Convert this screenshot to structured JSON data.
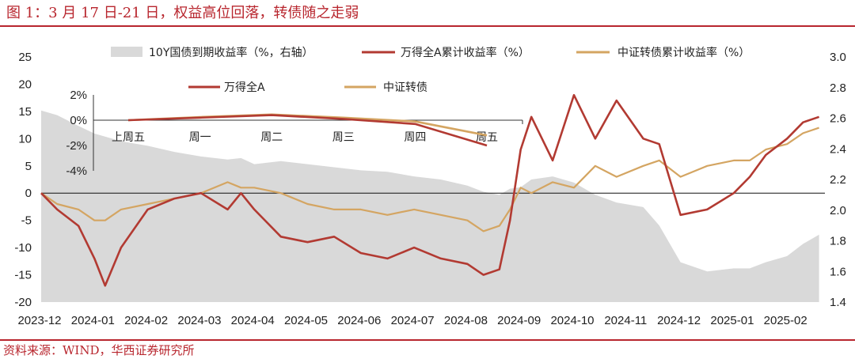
{
  "title": "图 1：3 月 17 日-21 日，权益高位回落，转债随之走弱",
  "source": "资料来源：WIND，华西证券研究所",
  "colors": {
    "accent": "#b8262e",
    "wind_a": "#b23a32",
    "csi_cb": "#d4a562",
    "bond_area": "#d9d9d9"
  },
  "chart_data": [
    {
      "type": "line",
      "ylim": [
        -20,
        25
      ],
      "y2lim": [
        1.4,
        3.0
      ],
      "yticks": [
        "25",
        "20",
        "15",
        "10",
        "5",
        "0",
        "-5",
        "-10",
        "-15",
        "-20"
      ],
      "y2ticks": [
        "3.0",
        "2.8",
        "2.6",
        "2.4",
        "2.2",
        "2.0",
        "1.8",
        "1.6",
        "1.4"
      ],
      "xticks": [
        "2023-12",
        "2024-01",
        "2024-02",
        "2024-03",
        "2024-04",
        "2024-05",
        "2024-06",
        "2024-07",
        "2024-08",
        "2024-09",
        "2024-10",
        "2024-11",
        "2024-12",
        "2025-01",
        "2025-02"
      ],
      "legend": [
        "10Y国债到期收益率（%，右轴）",
        "万得全A累计收益率（%）",
        "中证转债累计收益率（%）"
      ],
      "x": [
        0,
        0.3,
        0.7,
        1.0,
        1.2,
        1.5,
        2.0,
        2.5,
        3.0,
        3.5,
        3.75,
        4.0,
        4.5,
        5.0,
        5.5,
        6.0,
        6.5,
        7.0,
        7.5,
        8.0,
        8.3,
        8.6,
        8.8,
        9.0,
        9.2,
        9.6,
        10.0,
        10.4,
        10.8,
        11.3,
        11.6,
        12.0,
        12.5,
        13.0,
        13.3,
        13.6,
        14.0,
        14.3,
        14.6
      ],
      "series": [
        {
          "name": "10Y国债到期收益率（%，右轴）",
          "type": "area",
          "axis": "right",
          "values": [
            2.65,
            2.62,
            2.55,
            2.5,
            2.48,
            2.45,
            2.42,
            2.38,
            2.35,
            2.33,
            2.34,
            2.3,
            2.32,
            2.3,
            2.28,
            2.26,
            2.25,
            2.22,
            2.2,
            2.16,
            2.12,
            2.1,
            2.14,
            2.15,
            2.2,
            2.22,
            2.18,
            2.1,
            2.05,
            2.02,
            1.9,
            1.66,
            1.6,
            1.62,
            1.62,
            1.66,
            1.7,
            1.78,
            1.84
          ]
        },
        {
          "name": "万得全A累计收益率（%）",
          "type": "line",
          "axis": "left",
          "values": [
            0,
            -3,
            -6,
            -12,
            -17,
            -10,
            -3,
            -1,
            0,
            -3,
            0,
            -3,
            -8,
            -9,
            -8,
            -11,
            -12,
            -10,
            -12,
            -13,
            -15,
            -14,
            -5,
            8,
            14,
            6,
            18,
            10,
            17,
            10,
            9,
            -4,
            -3,
            0,
            3,
            7,
            10,
            13,
            14
          ]
        },
        {
          "name": "中证转债累计收益率（%）",
          "type": "line",
          "axis": "left",
          "values": [
            0,
            -2,
            -3,
            -5,
            -5,
            -3,
            -2,
            -1,
            0,
            2,
            1,
            1,
            0,
            -2,
            -3,
            -3,
            -4,
            -3,
            -4,
            -5,
            -7,
            -6,
            -3,
            1,
            0,
            2,
            1,
            5,
            3,
            5,
            6,
            3,
            5,
            6,
            6,
            8,
            9,
            11,
            12
          ]
        }
      ]
    },
    {
      "type": "line",
      "ylim": [
        -4,
        2
      ],
      "yticks": [
        "2%",
        "0%",
        "-2%",
        "-4%"
      ],
      "categories": [
        "上周五",
        "周一",
        "周二",
        "周三",
        "周四",
        "周五"
      ],
      "legend": [
        "万得全A",
        "中证转债"
      ],
      "series": [
        {
          "name": "万得全A",
          "values": [
            0.0,
            0.2,
            0.4,
            0.1,
            -0.3,
            -2.0
          ]
        },
        {
          "name": "中证转债",
          "values": [
            0.0,
            0.25,
            0.45,
            0.2,
            -0.1,
            -1.2
          ]
        }
      ]
    }
  ]
}
